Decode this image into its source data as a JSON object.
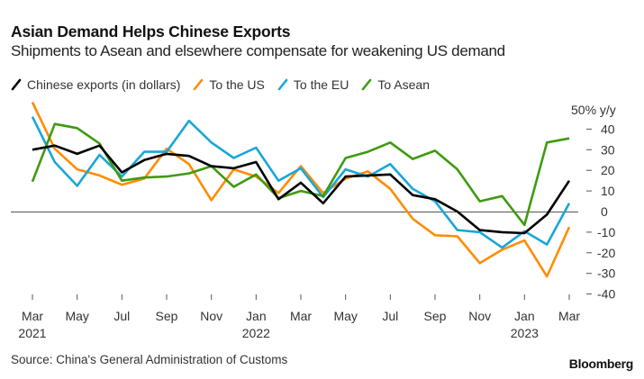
{
  "header": {
    "title": "Asian Demand Helps Chinese Exports",
    "subtitle": "Shipments to Asean and elsewhere compensate for weakening US demand"
  },
  "footer": {
    "source": "Source: China's General Administration of Customs",
    "brand": "Bloomberg"
  },
  "chart_data": {
    "type": "line",
    "title": "Asian Demand Helps Chinese Exports",
    "subtitle": "Shipments to Asean and elsewhere compensate for weakening US demand",
    "xlabel": "",
    "ylabel": "% y/y",
    "y_unit_label": "50% y/y",
    "ylim": [
      -40,
      50
    ],
    "yticks": [
      40,
      30,
      20,
      10,
      0,
      -10,
      -20,
      -30,
      -40
    ],
    "ytick_labels": [
      "40",
      "30",
      "20",
      "10",
      "0",
      "-10",
      "-20",
      "-30",
      "-40"
    ],
    "y_axis_side": "right",
    "grid": false,
    "zero_line": true,
    "legend_position": "top-left",
    "x": [
      "Mar 2021",
      "Apr 2021",
      "May 2021",
      "Jun 2021",
      "Jul 2021",
      "Aug 2021",
      "Sep 2021",
      "Oct 2021",
      "Nov 2021",
      "Dec 2021",
      "Jan 2022",
      "Feb 2022",
      "Mar 2022",
      "Apr 2022",
      "May 2022",
      "Jun 2022",
      "Jul 2022",
      "Aug 2022",
      "Sep 2022",
      "Oct 2022",
      "Nov 2022",
      "Dec 2022",
      "Jan 2023",
      "Feb 2023",
      "Mar 2023"
    ],
    "xticks": [
      {
        "index": 0,
        "month": "Mar",
        "year": "2021"
      },
      {
        "index": 2,
        "month": "May",
        "year": ""
      },
      {
        "index": 4,
        "month": "Jul",
        "year": ""
      },
      {
        "index": 6,
        "month": "Sep",
        "year": ""
      },
      {
        "index": 8,
        "month": "Nov",
        "year": ""
      },
      {
        "index": 10,
        "month": "Jan",
        "year": "2022"
      },
      {
        "index": 12,
        "month": "Mar",
        "year": ""
      },
      {
        "index": 14,
        "month": "May",
        "year": ""
      },
      {
        "index": 16,
        "month": "Jul",
        "year": ""
      },
      {
        "index": 18,
        "month": "Sep",
        "year": ""
      },
      {
        "index": 20,
        "month": "Nov",
        "year": ""
      },
      {
        "index": 22,
        "month": "Jan",
        "year": "2023"
      },
      {
        "index": 24,
        "month": "Mar",
        "year": ""
      }
    ],
    "series": [
      {
        "name": "Chinese exports (in dollars)",
        "color": "#000000",
        "values": [
          30,
          32,
          28,
          32,
          19,
          25,
          28,
          27,
          22,
          21,
          24,
          6,
          14,
          4,
          17,
          17.5,
          18,
          8,
          6,
          0,
          -9,
          -10,
          -10.5,
          -1.5,
          15
        ]
      },
      {
        "name": "To the US",
        "color": "#ff8c00",
        "values": [
          53,
          30.5,
          20.5,
          17.5,
          13,
          16,
          30.5,
          23,
          5.5,
          20.5,
          17,
          9,
          22,
          9,
          16,
          19.5,
          11,
          -3.5,
          -11.5,
          -12,
          -25,
          -18.5,
          -14,
          -31.5,
          -7.5
        ]
      },
      {
        "name": "To the EU",
        "color": "#19a6d8",
        "values": [
          46,
          24,
          12.5,
          27.5,
          17,
          29,
          29,
          44,
          33.5,
          26,
          31,
          15,
          21,
          7,
          20.5,
          17,
          23,
          11,
          5,
          -9,
          -10,
          -17.5,
          -9.5,
          -16,
          4
        ]
      },
      {
        "name": "To Asean",
        "color": "#3f9a10",
        "values": [
          14.5,
          42.5,
          40.5,
          33,
          15,
          16.5,
          17,
          18.5,
          22,
          12,
          18,
          6.5,
          10,
          7.5,
          26,
          29,
          33.5,
          25.5,
          29.5,
          20.5,
          5,
          7.5,
          -6.5,
          33.5,
          35.5
        ]
      }
    ]
  }
}
